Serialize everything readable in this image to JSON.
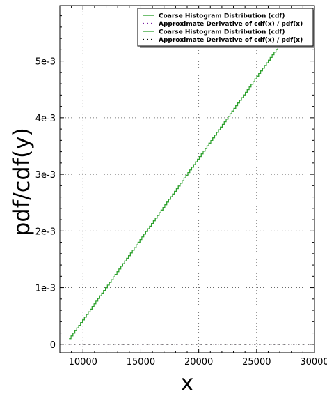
{
  "chart_data": {
    "type": "line",
    "title": "",
    "xlabel": "x",
    "ylabel": "pdf/cdf(y)",
    "xlim": [
      8000,
      30000
    ],
    "ylim": [
      -0.00015,
      0.00598
    ],
    "xticks": [
      10000,
      15000,
      20000,
      25000,
      30000
    ],
    "xtick_labels": [
      "10000",
      "15000",
      "20000",
      "25000",
      "30000"
    ],
    "yticks": [
      0,
      0.001,
      0.002,
      0.003,
      0.004,
      0.005
    ],
    "ytick_labels": [
      "0",
      "1e-3",
      "2e-3",
      "3e-3",
      "4e-3",
      "5e-3"
    ],
    "grid": true,
    "legend_position": "top-right",
    "series": [
      {
        "name": "Coarse Histogram Distribution (cdf)",
        "style": "step",
        "color": "#1f9b1f",
        "x_start": 8800,
        "x_end": 27000,
        "y_start": 0.0001,
        "y_end": 0.0053,
        "steps": 110
      },
      {
        "name": "Approximate Derivative of cdf(x) / pdf(x)",
        "style": "dashed",
        "color": "#7b1fa2",
        "x_start": 8800,
        "x_end": 30000,
        "y_start": 0.0,
        "y_end": 0.0
      },
      {
        "name": "Coarse Histogram Distribution (cdf)",
        "style": "step",
        "color": "#2ca02c",
        "x_start": 8800,
        "x_end": 27000,
        "y_start": 0.0001,
        "y_end": 0.0053,
        "steps": 110
      },
      {
        "name": "Approximate Derivative of cdf(x) / pdf(x)",
        "style": "dashed",
        "color": "#000000",
        "x_start": 8800,
        "x_end": 30000,
        "y_start": 0.0,
        "y_end": 0.0
      }
    ]
  }
}
